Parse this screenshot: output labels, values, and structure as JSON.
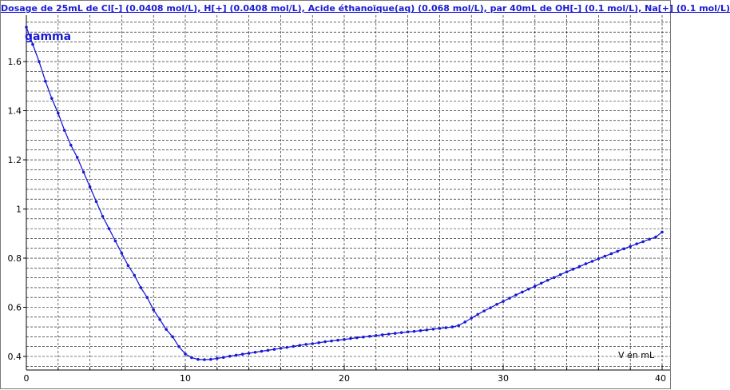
{
  "chart_data": {
    "type": "line",
    "title": "Dosage de 25mL de Cl[-] (0.0408 mol/L), H[+] (0.0408 mol/L), Acide éthanoïque(aq) (0.068 mol/L),  par 40mL  de OH[-] (0.1 mol/L), Na[+] (0.1 mol/L)",
    "ylabel": "gamma",
    "xlabel": "V en mL",
    "xlim": [
      0,
      40
    ],
    "ylim": [
      0.36,
      1.76
    ],
    "x_ticks": [
      "0",
      "10",
      "20",
      "30",
      "40"
    ],
    "y_ticks": [
      "0.4",
      "0.6",
      "0.8",
      "1",
      "1.2",
      "1.4",
      "1.6"
    ],
    "grid": true,
    "series": [
      {
        "color": "#1a1ad6",
        "points": [
          [
            0,
            1.74
          ],
          [
            0.4,
            1.67
          ],
          [
            0.8,
            1.6
          ],
          [
            1.2,
            1.52
          ],
          [
            1.6,
            1.45
          ],
          [
            2.0,
            1.39
          ],
          [
            2.4,
            1.32
          ],
          [
            2.8,
            1.26
          ],
          [
            3.2,
            1.21
          ],
          [
            3.6,
            1.15
          ],
          [
            4.0,
            1.09
          ],
          [
            4.4,
            1.03
          ],
          [
            4.8,
            0.97
          ],
          [
            5.2,
            0.92
          ],
          [
            5.6,
            0.87
          ],
          [
            6.0,
            0.82
          ],
          [
            6.4,
            0.77
          ],
          [
            6.8,
            0.73
          ],
          [
            7.2,
            0.68
          ],
          [
            7.6,
            0.64
          ],
          [
            8.0,
            0.59
          ],
          [
            8.4,
            0.55
          ],
          [
            8.8,
            0.51
          ],
          [
            9.2,
            0.48
          ],
          [
            9.6,
            0.44
          ],
          [
            10.0,
            0.41
          ],
          [
            10.4,
            0.395
          ],
          [
            10.8,
            0.388
          ],
          [
            11.2,
            0.387
          ],
          [
            11.6,
            0.388
          ],
          [
            12.0,
            0.392
          ],
          [
            12.4,
            0.396
          ],
          [
            12.8,
            0.401
          ],
          [
            13.2,
            0.405
          ],
          [
            13.6,
            0.409
          ],
          [
            14.0,
            0.413
          ],
          [
            14.4,
            0.417
          ],
          [
            14.8,
            0.421
          ],
          [
            15.2,
            0.425
          ],
          [
            15.6,
            0.429
          ],
          [
            16.0,
            0.433
          ],
          [
            16.4,
            0.437
          ],
          [
            16.8,
            0.441
          ],
          [
            17.2,
            0.445
          ],
          [
            17.6,
            0.449
          ],
          [
            18.0,
            0.452
          ],
          [
            18.4,
            0.456
          ],
          [
            18.8,
            0.46
          ],
          [
            19.2,
            0.463
          ],
          [
            19.6,
            0.466
          ],
          [
            20.0,
            0.469
          ],
          [
            20.4,
            0.473
          ],
          [
            20.8,
            0.476
          ],
          [
            21.2,
            0.479
          ],
          [
            21.6,
            0.482
          ],
          [
            22.0,
            0.485
          ],
          [
            22.4,
            0.488
          ],
          [
            22.8,
            0.491
          ],
          [
            23.2,
            0.494
          ],
          [
            23.6,
            0.497
          ],
          [
            24.0,
            0.5
          ],
          [
            24.4,
            0.502
          ],
          [
            24.8,
            0.505
          ],
          [
            25.2,
            0.508
          ],
          [
            25.6,
            0.511
          ],
          [
            26.0,
            0.514
          ],
          [
            26.4,
            0.517
          ],
          [
            26.8,
            0.52
          ],
          [
            27.2,
            0.526
          ],
          [
            27.6,
            0.54
          ],
          [
            28.0,
            0.556
          ],
          [
            28.4,
            0.571
          ],
          [
            28.8,
            0.585
          ],
          [
            29.2,
            0.598
          ],
          [
            29.6,
            0.612
          ],
          [
            30.0,
            0.624
          ],
          [
            30.4,
            0.637
          ],
          [
            30.8,
            0.65
          ],
          [
            31.2,
            0.662
          ],
          [
            31.6,
            0.674
          ],
          [
            32.0,
            0.686
          ],
          [
            32.4,
            0.698
          ],
          [
            32.8,
            0.71
          ],
          [
            33.2,
            0.721
          ],
          [
            33.6,
            0.733
          ],
          [
            34.0,
            0.744
          ],
          [
            34.4,
            0.755
          ],
          [
            34.8,
            0.766
          ],
          [
            35.2,
            0.777
          ],
          [
            35.6,
            0.787
          ],
          [
            36.0,
            0.798
          ],
          [
            36.4,
            0.808
          ],
          [
            36.8,
            0.818
          ],
          [
            37.2,
            0.828
          ],
          [
            37.6,
            0.838
          ],
          [
            38.0,
            0.848
          ],
          [
            38.4,
            0.858
          ],
          [
            38.8,
            0.867
          ],
          [
            39.2,
            0.877
          ],
          [
            39.6,
            0.886
          ],
          [
            40.0,
            0.906
          ]
        ]
      }
    ]
  }
}
